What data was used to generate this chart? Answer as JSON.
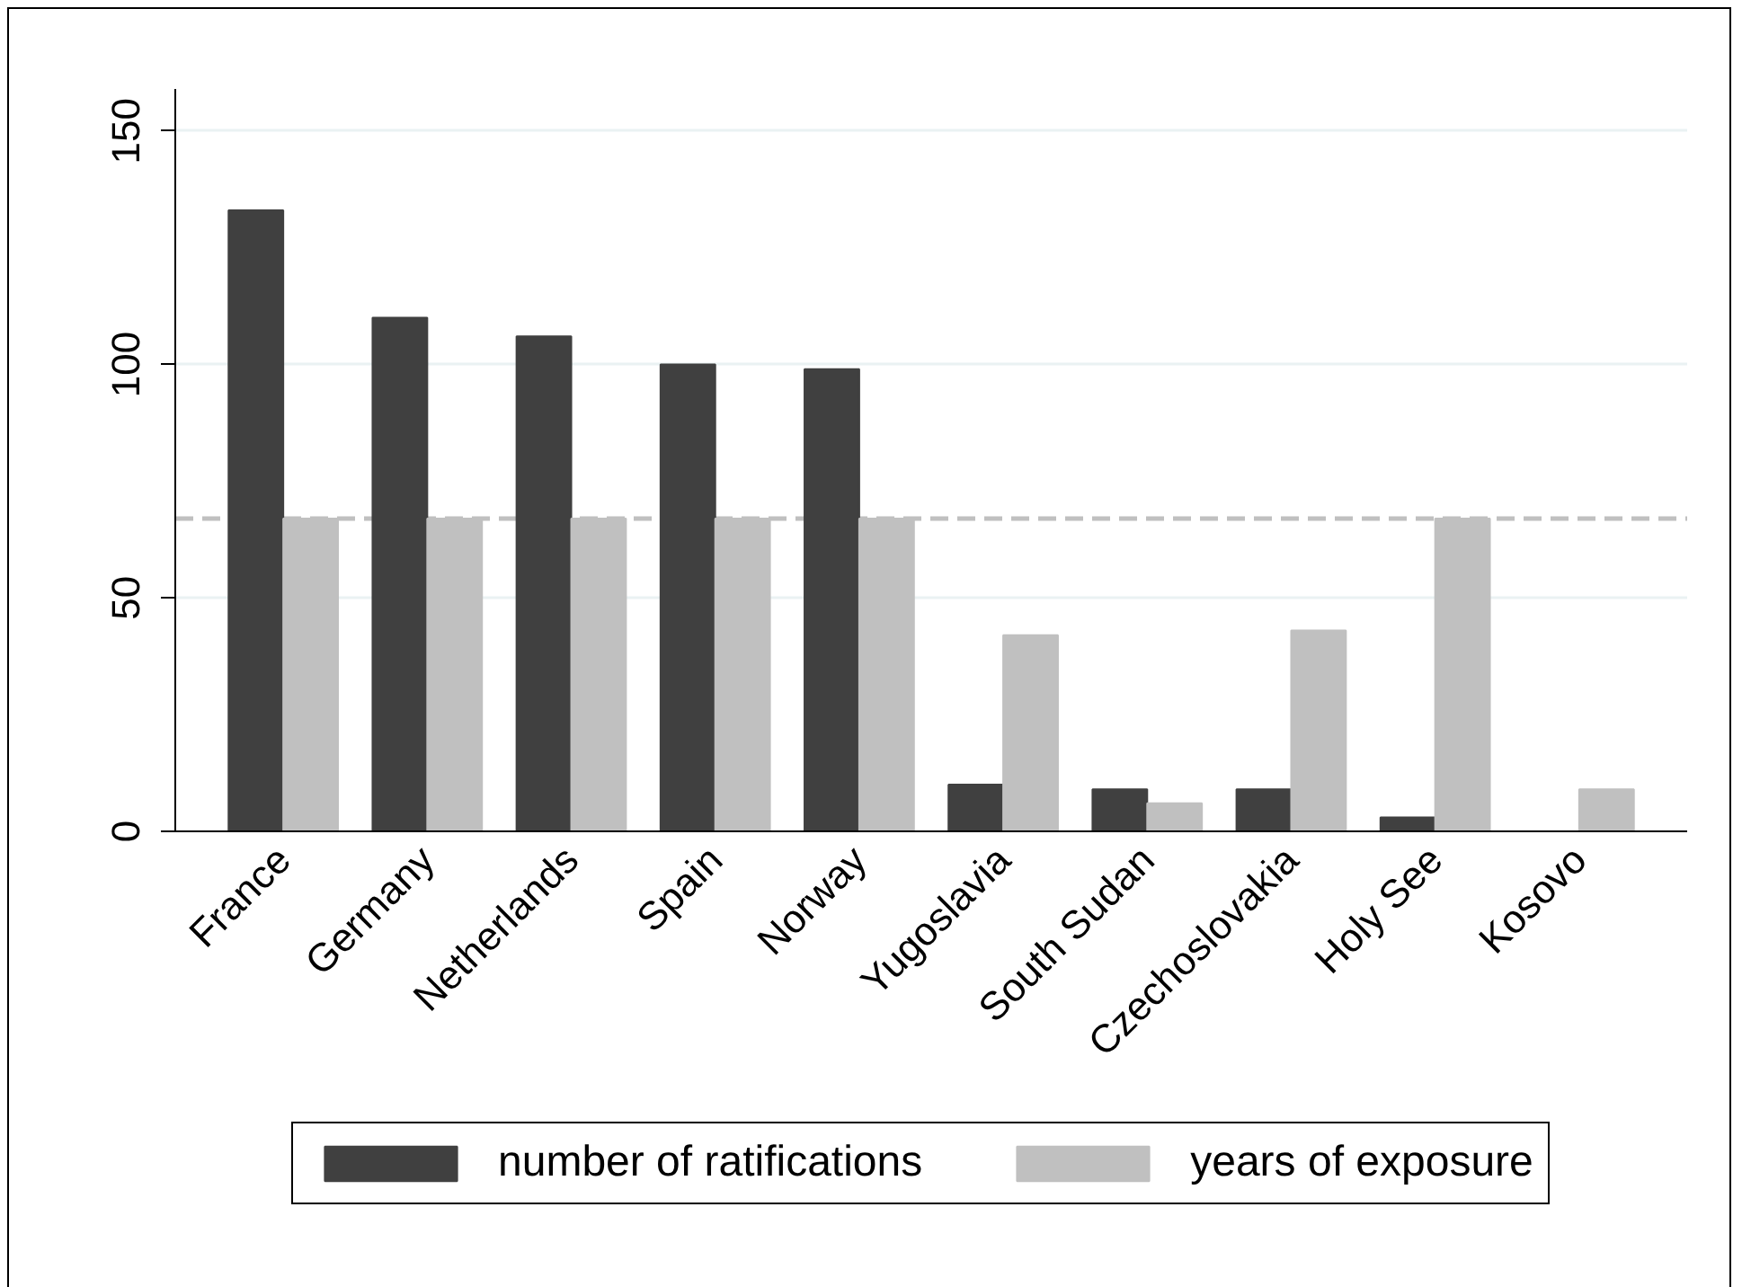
{
  "chart_data": {
    "type": "bar",
    "categories": [
      "France",
      "Germany",
      "Netherlands",
      "Spain",
      "Norway",
      "Yugoslavia",
      "South Sudan",
      "Czechoslovakia",
      "Holy See",
      "Kosovo"
    ],
    "series": [
      {
        "name": "number of ratifications",
        "color": "#404040",
        "values": [
          133,
          110,
          106,
          100,
          99,
          10,
          9,
          9,
          3,
          0
        ]
      },
      {
        "name": "years of exposure",
        "color": "#c0c0c0",
        "values": [
          67,
          67,
          67,
          67,
          67,
          42,
          6,
          43,
          67,
          9
        ]
      }
    ],
    "ylim": [
      0,
      159
    ],
    "yticks": [
      0,
      50,
      100,
      150
    ],
    "grid": "y",
    "legend": "bottom",
    "ref_lines": [
      {
        "axis": "y",
        "value": 67,
        "color": "#c0c0c0",
        "line_style": "dashed"
      }
    ]
  }
}
